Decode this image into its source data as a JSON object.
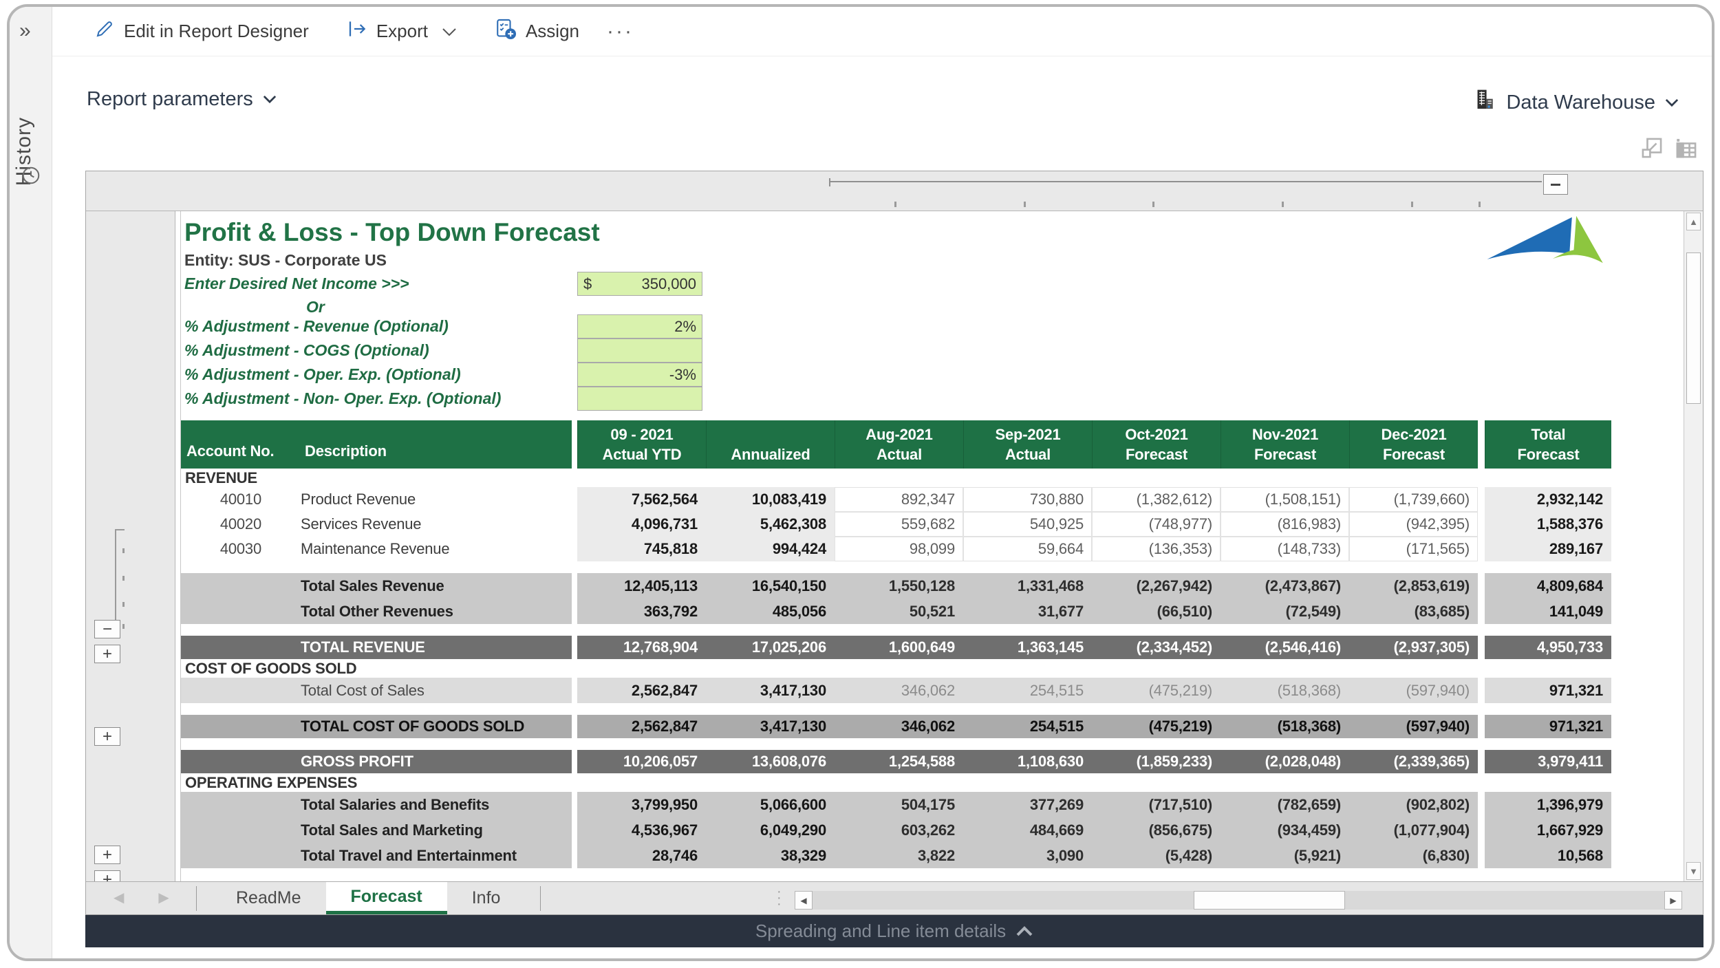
{
  "colors": {
    "green": "#1e7145",
    "green-title": "#217346",
    "green-label": "#1f6c43",
    "input-green": "#d9f2ad",
    "band-sub": "#c9c9c9",
    "band-light": "#dcdcdc",
    "band-mid": "#ababab",
    "band-dark": "#6f6f6f",
    "col-shade": "#ebebeb",
    "blue": "#2e6db5",
    "darkbar": "#2a323f",
    "logo-blue": "#1f6cb5",
    "logo-green": "#8dc63f"
  },
  "window": {
    "toolbar": {
      "edit": "Edit in Report Designer",
      "export": "Export",
      "assign": "Assign",
      "more": "···"
    },
    "sidebar": {
      "history": "History",
      "expander": "»"
    },
    "params_bar": {
      "report_parameters": "Report parameters",
      "data_warehouse": "Data Warehouse"
    }
  },
  "sheet": {
    "title": "Profit & Loss - Top Down Forecast",
    "entity": "Entity: SUS - Corporate US",
    "or_label": "Or",
    "inputs": [
      {
        "label": "Enter Desired Net Income  >>>",
        "prefix": "$",
        "value": "350,000"
      },
      {
        "label": "% Adjustment - Revenue (Optional)",
        "prefix": "",
        "value": "2%"
      },
      {
        "label": "% Adjustment - COGS (Optional)",
        "prefix": "",
        "value": ""
      },
      {
        "label": "% Adjustment - Oper. Exp. (Optional)",
        "prefix": "",
        "value": "-3%"
      },
      {
        "label": "% Adjustment - Non- Oper. Exp. (Optional)",
        "prefix": "",
        "value": ""
      }
    ],
    "tabs": [
      "ReadMe",
      "Forecast",
      "Info"
    ],
    "active_tab": "Forecast",
    "bottom_bar": "Spreading and Line item details"
  },
  "table": {
    "header": {
      "account": "Account No.",
      "description": "Description",
      "cols": [
        {
          "l1": "09 - 2021",
          "l2": "Actual YTD"
        },
        {
          "l1": "",
          "l2": "Annualized"
        },
        {
          "l1": "Aug-2021",
          "l2": "Actual"
        },
        {
          "l1": "Sep-2021",
          "l2": "Actual"
        },
        {
          "l1": "Oct-2021",
          "l2": "Forecast"
        },
        {
          "l1": "Nov-2021",
          "l2": "Forecast"
        },
        {
          "l1": "Dec-2021",
          "l2": "Forecast"
        },
        {
          "l1": "Total",
          "l2": "Forecast"
        }
      ]
    },
    "rows": [
      {
        "type": "section",
        "label": "REVENUE"
      },
      {
        "type": "detail",
        "account": "40010",
        "desc": "Product Revenue",
        "values": [
          "7,562,564",
          "10,083,419",
          "892,347",
          "730,880",
          "(1,382,612)",
          "(1,508,151)",
          "(1,739,660)",
          "2,932,142"
        ]
      },
      {
        "type": "detail",
        "account": "40020",
        "desc": "Services Revenue",
        "values": [
          "4,096,731",
          "5,462,308",
          "559,682",
          "540,925",
          "(748,977)",
          "(816,983)",
          "(942,395)",
          "1,588,376"
        ]
      },
      {
        "type": "detail",
        "account": "40030",
        "desc": "Maintenance Revenue",
        "values": [
          "745,818",
          "994,424",
          "98,099",
          "59,664",
          "(136,353)",
          "(148,733)",
          "(171,565)",
          "289,167"
        ]
      },
      {
        "type": "spacer"
      },
      {
        "type": "subtotal",
        "account": "",
        "desc": "Total Sales Revenue",
        "values": [
          "12,405,113",
          "16,540,150",
          "1,550,128",
          "1,331,468",
          "(2,267,942)",
          "(2,473,867)",
          "(2,853,619)",
          "4,809,684"
        ]
      },
      {
        "type": "subtotal",
        "account": "",
        "desc": "Total Other Revenues",
        "values": [
          "363,792",
          "485,056",
          "50,521",
          "31,677",
          "(66,510)",
          "(72,549)",
          "(83,685)",
          "141,049"
        ]
      },
      {
        "type": "spacer"
      },
      {
        "type": "grand",
        "account": "",
        "desc": "TOTAL REVENUE",
        "values": [
          "12,768,904",
          "17,025,206",
          "1,600,649",
          "1,363,145",
          "(2,334,452)",
          "(2,546,416)",
          "(2,937,305)",
          "4,950,733"
        ]
      },
      {
        "type": "section",
        "label": "COST OF GOODS SOLD"
      },
      {
        "type": "lightrow",
        "account": "",
        "desc": "Total Cost of Sales",
        "values": [
          "2,562,847",
          "3,417,130",
          "346,062",
          "254,515",
          "(475,219)",
          "(518,368)",
          "(597,940)",
          "971,321"
        ]
      },
      {
        "type": "spacer"
      },
      {
        "type": "midtotal",
        "account": "",
        "desc": "TOTAL COST OF GOODS SOLD",
        "values": [
          "2,562,847",
          "3,417,130",
          "346,062",
          "254,515",
          "(475,219)",
          "(518,368)",
          "(597,940)",
          "971,321"
        ]
      },
      {
        "type": "spacer"
      },
      {
        "type": "grand",
        "account": "",
        "desc": "GROSS PROFIT",
        "values": [
          "10,206,057",
          "13,608,076",
          "1,254,588",
          "1,108,630",
          "(1,859,233)",
          "(2,028,048)",
          "(2,339,365)",
          "3,979,411"
        ]
      },
      {
        "type": "section",
        "label": "OPERATING EXPENSES"
      },
      {
        "type": "subtotal",
        "account": "",
        "desc": "Total Salaries and Benefits",
        "values": [
          "3,799,950",
          "5,066,600",
          "504,175",
          "377,269",
          "(717,510)",
          "(782,659)",
          "(902,802)",
          "1,396,979"
        ]
      },
      {
        "type": "subtotal",
        "account": "",
        "desc": "Total Sales and Marketing",
        "values": [
          "4,536,967",
          "6,049,290",
          "603,262",
          "484,669",
          "(856,675)",
          "(934,459)",
          "(1,077,904)",
          "1,667,929"
        ]
      },
      {
        "type": "subtotal",
        "account": "",
        "desc": "Total Travel and Entertainment",
        "values": [
          "28,746",
          "38,329",
          "3,822",
          "3,090",
          "(5,428)",
          "(5,921)",
          "(6,830)",
          "10,568"
        ]
      }
    ]
  }
}
